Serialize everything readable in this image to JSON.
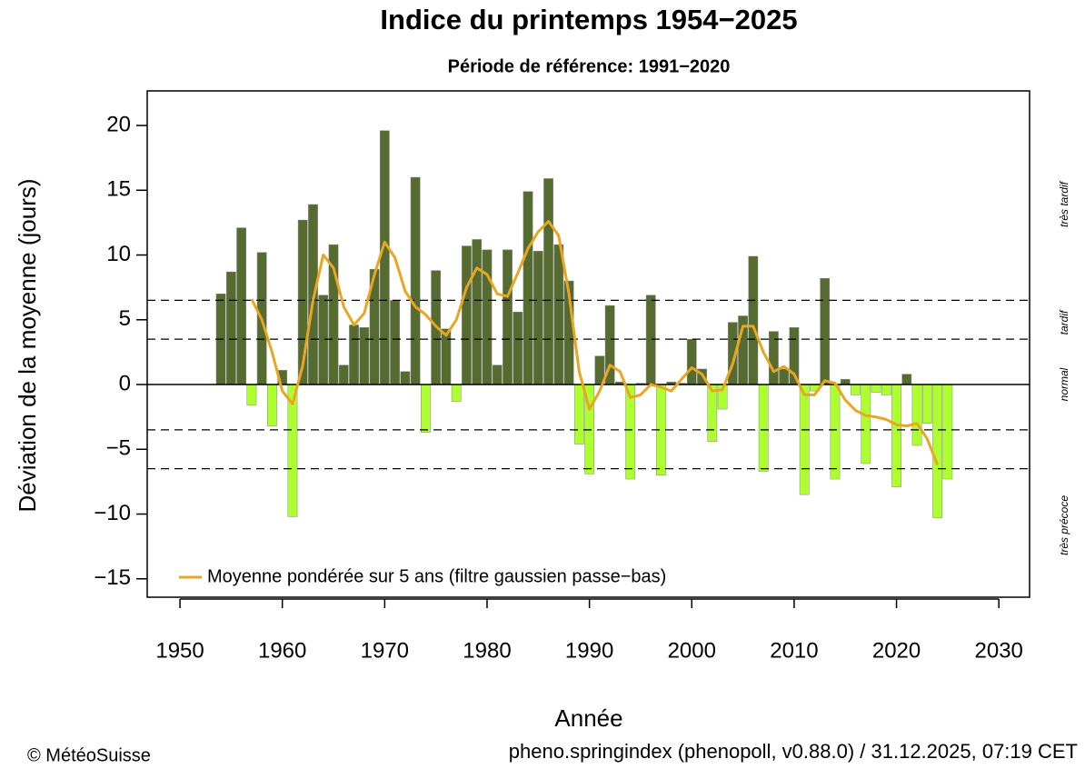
{
  "chart_data": {
    "type": "bar",
    "title": "Indice du printemps 1954−2025",
    "subtitle": "Période de référence: 1991−2020",
    "xlabel": "Année",
    "ylabel": "Déviation de la moyenne (jours)",
    "x": [
      1954,
      1955,
      1956,
      1957,
      1958,
      1959,
      1960,
      1961,
      1962,
      1963,
      1964,
      1965,
      1966,
      1967,
      1968,
      1969,
      1970,
      1971,
      1972,
      1973,
      1974,
      1975,
      1976,
      1977,
      1978,
      1979,
      1980,
      1981,
      1982,
      1983,
      1984,
      1985,
      1986,
      1987,
      1988,
      1989,
      1990,
      1991,
      1992,
      1993,
      1994,
      1995,
      1996,
      1997,
      1998,
      1999,
      2000,
      2001,
      2002,
      2003,
      2004,
      2005,
      2006,
      2007,
      2008,
      2009,
      2010,
      2011,
      2012,
      2013,
      2014,
      2015,
      2016,
      2017,
      2018,
      2019,
      2020,
      2021,
      2022,
      2023,
      2024,
      2025
    ],
    "values": [
      7.0,
      8.7,
      12.1,
      -1.6,
      10.2,
      -3.2,
      1.1,
      -10.2,
      12.7,
      13.9,
      6.9,
      10.8,
      1.5,
      4.6,
      4.4,
      8.9,
      19.6,
      6.5,
      1.0,
      16.0,
      -3.7,
      8.8,
      4.3,
      -1.3,
      10.7,
      11.2,
      10.4,
      1.5,
      10.4,
      5.6,
      14.9,
      10.3,
      15.9,
      10.8,
      8.0,
      -4.6,
      -6.9,
      2.2,
      6.1,
      0.2,
      -7.3,
      0.1,
      6.9,
      -7.0,
      0.2,
      0.1,
      3.5,
      1.2,
      -4.4,
      -1.9,
      4.8,
      5.3,
      9.9,
      -6.7,
      4.1,
      1.2,
      4.4,
      -8.5,
      -0.5,
      8.2,
      -7.3,
      0.4,
      -0.8,
      -6.1,
      -0.6,
      -0.8,
      -7.9,
      0.8,
      -4.7,
      -3.0,
      -10.3,
      -7.3
    ],
    "positive_color": "#556b2f",
    "negative_color": "#adff2f",
    "line": {
      "name": "Moyenne pondérée sur 5 ans (filtre gaussien passe−bas)",
      "color": "#e8a623",
      "x": [
        1957,
        1958,
        1959,
        1960,
        1961,
        1962,
        1963,
        1964,
        1965,
        1966,
        1967,
        1968,
        1969,
        1970,
        1971,
        1972,
        1973,
        1974,
        1975,
        1976,
        1977,
        1978,
        1979,
        1980,
        1981,
        1982,
        1983,
        1984,
        1985,
        1986,
        1987,
        1988,
        1989,
        1990,
        1991,
        1992,
        1993,
        1994,
        1995,
        1996,
        1997,
        1998,
        1999,
        2000,
        2001,
        2002,
        2003,
        2004,
        2005,
        2006,
        2007,
        2008,
        2009,
        2010,
        2011,
        2012,
        2013,
        2014,
        2015,
        2016,
        2017,
        2018,
        2019,
        2020,
        2021,
        2022,
        2023,
        2024
      ],
      "values": [
        6.6,
        5.0,
        2.5,
        -0.5,
        -1.5,
        1.5,
        6.5,
        10.0,
        9.0,
        6.0,
        4.6,
        5.5,
        8.5,
        11.0,
        9.8,
        7.2,
        6.0,
        5.4,
        4.5,
        3.8,
        5.0,
        7.5,
        9.0,
        8.5,
        7.0,
        6.8,
        8.6,
        10.5,
        11.8,
        12.6,
        11.5,
        7.0,
        1.0,
        -1.9,
        -0.5,
        1.5,
        1.0,
        -1.0,
        -0.8,
        0.0,
        -0.2,
        -0.5,
        0.4,
        1.3,
        0.8,
        -0.5,
        -0.4,
        1.6,
        4.5,
        4.5,
        2.5,
        1.0,
        1.4,
        0.8,
        -0.8,
        -0.8,
        0.3,
        0.1,
        -1.2,
        -2.0,
        -2.4,
        -2.5,
        -2.7,
        -3.1,
        -3.2,
        -3.0,
        -4.2,
        -6.2
      ]
    },
    "reference_lines": [
      6.5,
      3.5,
      -3.5,
      -6.5
    ],
    "zone_labels": [
      "très tardif",
      "tardif",
      "normal",
      "très précoce"
    ],
    "xlim": [
      1946.8,
      2033.0
    ],
    "ylim": [
      -16.42,
      22.67
    ],
    "xticks": [
      1950,
      1960,
      1970,
      1980,
      1990,
      2000,
      2010,
      2020,
      2030
    ],
    "yticks": [
      {
        "value": -15,
        "label": "−15"
      },
      {
        "value": -10,
        "label": "−10"
      },
      {
        "value": -5,
        "label": "−5"
      },
      0,
      5,
      10,
      15,
      20
    ],
    "legend": "bottom-left",
    "credit": "© MétéoSuisse",
    "source": "pheno.springindex (phenopoll, v0.88.0) / 31.12.2025, 07:19 CET"
  }
}
